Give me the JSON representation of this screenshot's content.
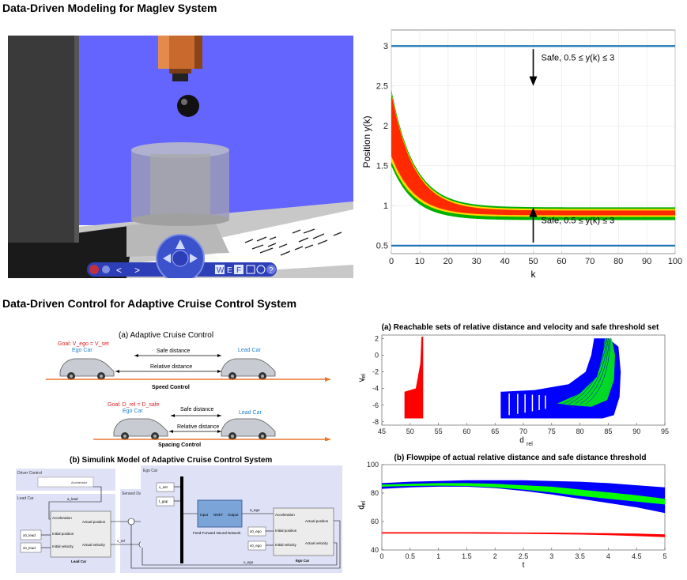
{
  "sections": {
    "top_title": "Data-Driven Modeling for Maglev System",
    "bottom_title": "Data-Driven Control for Adaptive Cruise Control System"
  },
  "maglev_scene": {
    "toolbar": {
      "w": "W",
      "e": "E",
      "f": "F",
      "help": "?"
    },
    "colors": {
      "sky": "#6464ff",
      "floor": "#c8c8c8",
      "pillar": "#3a3a3a",
      "electromagnet": "#c86a2e",
      "ball": "#111111",
      "navigator": "#2d3fb8"
    }
  },
  "position_chart": {
    "chart_data": {
      "type": "line",
      "xlabel": "k",
      "ylabel": "Position y(k)",
      "xlim": [
        0,
        100
      ],
      "ylim": [
        0.4,
        3.2
      ],
      "xticks": [
        "0",
        "10",
        "20",
        "30",
        "40",
        "50",
        "60",
        "70",
        "80",
        "90",
        "100"
      ],
      "yticks": [
        "0.5",
        "1",
        "1.5",
        "2",
        "2.5",
        "3"
      ],
      "safe_upper": 3,
      "safe_lower": 0.5,
      "annotation_upper": "Safe, 0.5 ≤ y(k) ≤ 3",
      "annotation_lower": "Safe, 0.5 ≤ y(k) ≤ 3",
      "colors": {
        "safe_line": "#1f77b4",
        "band_outer": "#00b000",
        "band_mid": "#ffd700",
        "band_inner": "#ff2a00"
      }
    }
  },
  "acc_diagram": {
    "title": "(a) Adaptive Cruise Control",
    "speed": {
      "goal": "Goal: V_ego = V_set",
      "ego": "Ego Car",
      "lead": "Lead Car",
      "safe": "Safe distance",
      "relative": "Relative distance",
      "caption": "Speed Control"
    },
    "spacing": {
      "goal": "Goal: D_rel = D_safe",
      "ego": "Ego Car",
      "lead": "Lead Car",
      "safe": "Safe distance",
      "relative": "Relative distance",
      "caption": "Spacing Control"
    }
  },
  "simulink": {
    "title": "(b) Simulink Model of Adaptive Cruise Control System",
    "driver_control": "Driver Control",
    "accelerator": "Accelerator",
    "a_lead": "a_lead",
    "lead_car": "Lead Car",
    "lead_block": {
      "acc": "Acceleration",
      "init_pos": "Initial position",
      "init_vel": "Initial velocity",
      "act_pos": "Actual position",
      "act_vel": "Actual velocity",
      "name": "Lead Car"
    },
    "x0_lead": "x0_lead",
    "v0_lead": "v0_lead",
    "sensed_data": "Sensed Data",
    "d_rel": "d_rel",
    "v_rel": "v_rel",
    "ego_car": "Ego Car",
    "v_set": "v_set",
    "t_gap": "t_gap",
    "nn": {
      "input": "Input",
      "name": "NNET",
      "output": "Output",
      "caption": "Feed-Forward Neural Network"
    },
    "a_ego": "a_ego",
    "x0_ego": "x0_ego",
    "v0_ego": "v0_ego",
    "ego_block": {
      "acc": "Acceleration",
      "init_pos": "Initial position",
      "init_vel": "Initial velocity",
      "act_pos": "Actual position",
      "act_vel": "Actual velocity",
      "name": "Ego Car"
    },
    "v_ego": "v_ego"
  },
  "reach_chart": {
    "chart_data": {
      "type": "scatter",
      "title": "(a) Reachable sets of relative distance and velocity and safe threshold set",
      "xlabel": "d",
      "xlabel_sub": "rel",
      "ylabel": "v",
      "ylabel_sub": "rel",
      "xlim": [
        45,
        95
      ],
      "ylim": [
        -8.4,
        2.4
      ],
      "xticks": [
        "45",
        "50",
        "55",
        "60",
        "65",
        "70",
        "75",
        "80",
        "85",
        "90",
        "95"
      ],
      "yticks": [
        "-8",
        "-6",
        "-4",
        "-2",
        "0",
        "2"
      ],
      "safe_set": [
        {
          "d": 49,
          "v": -7.6
        },
        {
          "d": 49,
          "v": -4.4
        },
        {
          "d": 51,
          "v": -4
        },
        {
          "d": 51.8,
          "v": -1
        },
        {
          "d": 52,
          "v": 2.2
        },
        {
          "d": 52.3,
          "v": 2.2
        },
        {
          "d": 52.3,
          "v": -7.6
        }
      ],
      "colors": {
        "safe": "#ff0000",
        "reach": "#0000ff",
        "highlight": "#00ff00"
      }
    }
  },
  "flowpipe_chart": {
    "chart_data": {
      "type": "area",
      "title": "(b) Flowpipe of actual relative distance and safe distance threshold",
      "xlabel": "t",
      "ylabel": "d",
      "ylabel_sub": "rel",
      "xlim": [
        0,
        5
      ],
      "ylim": [
        40,
        100
      ],
      "xticks": [
        "0",
        "0.5",
        "1",
        "1.5",
        "2",
        "2.5",
        "3",
        "3.5",
        "4",
        "4.5",
        "5"
      ],
      "yticks": [
        "40",
        "60",
        "80",
        "100"
      ],
      "t": [
        0,
        0.5,
        1,
        1.5,
        2,
        2.5,
        3,
        3.5,
        4,
        4.5,
        5
      ],
      "blue_upper": [
        87,
        88,
        88.5,
        89,
        89,
        89,
        88.5,
        88,
        87,
        85.5,
        84
      ],
      "blue_lower": [
        83,
        84,
        84.5,
        84.5,
        83.5,
        81.5,
        79,
        76,
        73,
        70,
        66
      ],
      "green_upper": [
        86,
        86.5,
        87,
        87,
        86.5,
        85.5,
        84.5,
        82.5,
        80.5,
        78.5,
        76
      ],
      "green_lower": [
        84.5,
        85,
        85.2,
        85,
        84,
        82.5,
        80.5,
        78,
        76,
        74,
        72
      ],
      "red_upper": [
        52.5,
        52.5,
        52.5,
        52.5,
        52.4,
        52.3,
        52.2,
        52,
        51.8,
        51.5,
        51
      ],
      "red_lower": [
        51.5,
        51.5,
        51.5,
        51.5,
        51.4,
        51.3,
        51.1,
        50.8,
        50.4,
        49.8,
        49
      ],
      "colors": {
        "outer": "#0000ff",
        "inner": "#00ff00",
        "safe": "#ff0000"
      }
    }
  }
}
